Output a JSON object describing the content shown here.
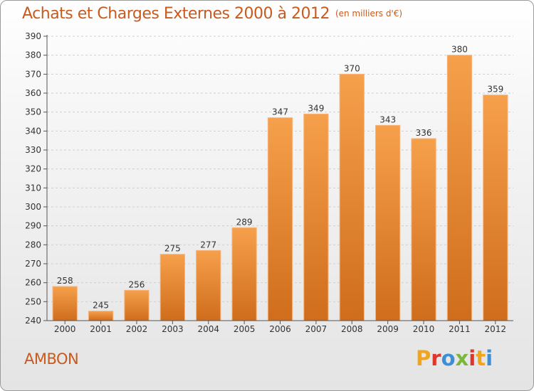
{
  "header": {
    "title": "Achats et Charges Externes 2000 à 2012",
    "subtitle": "(en milliers d'€)"
  },
  "footer": {
    "commune": "AMBON",
    "logo_text": "Proxiti",
    "logo_colors": [
      "#f2a41a",
      "#e0352b",
      "#3c8fd6",
      "#7ab83d",
      "#e0352b",
      "#f2a41a",
      "#3c8fd6"
    ]
  },
  "colors": {
    "bar": "#f0923a",
    "bar_dark": "#d06f1e",
    "grid": "#cfcfcf",
    "title": "#c85a1e"
  },
  "chart_data": {
    "type": "bar",
    "title": "Achats et Charges Externes 2000 à 2012",
    "subtitle": "(en milliers d'€)",
    "categories": [
      "2000",
      "2001",
      "2002",
      "2003",
      "2004",
      "2005",
      "2006",
      "2007",
      "2008",
      "2009",
      "2010",
      "2011",
      "2012"
    ],
    "values": [
      258,
      245,
      256,
      275,
      277,
      289,
      347,
      349,
      370,
      343,
      336,
      380,
      359
    ],
    "ylim": [
      240,
      390
    ],
    "yticks": [
      240,
      250,
      260,
      270,
      280,
      290,
      300,
      310,
      320,
      330,
      340,
      350,
      360,
      370,
      380,
      390
    ],
    "grid": true,
    "xlabel": "",
    "ylabel": ""
  }
}
